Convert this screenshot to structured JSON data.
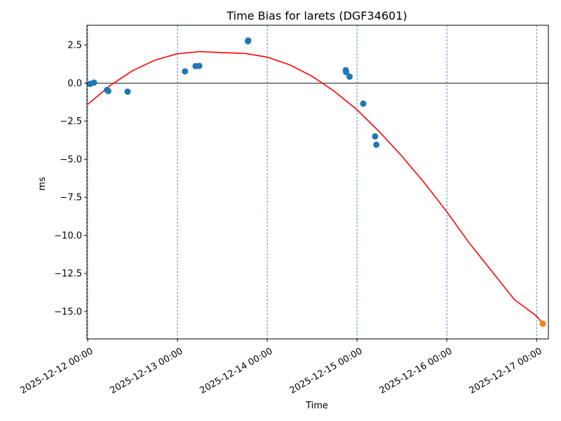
{
  "chart_data": {
    "type": "scatter",
    "title": "Time Bias for larets (DGF34601)",
    "xlabel": "Time",
    "ylabel": "ms",
    "x_type": "datetime",
    "xlim": [
      "2025-12-11T23:48",
      "2025-12-17T03:09"
    ],
    "ylim": [
      -16.8,
      3.8
    ],
    "x_ticks": [
      {
        "value": "2025-12-12T00:00",
        "label": "2025-12-12 00:00"
      },
      {
        "value": "2025-12-13T00:00",
        "label": "2025-12-13 00:00"
      },
      {
        "value": "2025-12-14T00:00",
        "label": "2025-12-14 00:00"
      },
      {
        "value": "2025-12-15T00:00",
        "label": "2025-12-15 00:00"
      },
      {
        "value": "2025-12-16T00:00",
        "label": "2025-12-16 00:00"
      },
      {
        "value": "2025-12-17T00:00",
        "label": "2025-12-17 00:00"
      }
    ],
    "y_ticks": [
      {
        "value": 2.5,
        "label": "2.5"
      },
      {
        "value": 0.0,
        "label": "0.0"
      },
      {
        "value": -2.5,
        "label": "−2.5"
      },
      {
        "value": -5.0,
        "label": "−5.0"
      },
      {
        "value": -7.5,
        "label": "−7.5"
      },
      {
        "value": -10.0,
        "label": "−10.0"
      },
      {
        "value": -12.5,
        "label": "−12.5"
      },
      {
        "value": -15.0,
        "label": "−15.0"
      }
    ],
    "vertical_gridlines": [
      "2025-12-12T00:00",
      "2025-12-13T00:00",
      "2025-12-14T00:00",
      "2025-12-15T00:00",
      "2025-12-16T00:00",
      "2025-12-17T00:00"
    ],
    "zero_line": 0,
    "series": [
      {
        "type": "scatter",
        "color": "#1f77b4",
        "points": [
          {
            "x": "2025-12-12T00:40",
            "y": -0.05
          },
          {
            "x": "2025-12-12T01:40",
            "y": 0.03
          },
          {
            "x": "2025-12-12T05:10",
            "y": -0.45
          },
          {
            "x": "2025-12-12T05:30",
            "y": -0.52
          },
          {
            "x": "2025-12-12T10:40",
            "y": -0.56
          },
          {
            "x": "2025-12-13T02:00",
            "y": 0.77
          },
          {
            "x": "2025-12-13T04:50",
            "y": 1.12
          },
          {
            "x": "2025-12-13T05:50",
            "y": 1.13
          },
          {
            "x": "2025-12-13T18:50",
            "y": 2.75
          },
          {
            "x": "2025-12-13T18:55",
            "y": 2.8
          },
          {
            "x": "2025-12-14T21:00",
            "y": 0.85
          },
          {
            "x": "2025-12-14T21:05",
            "y": 0.72
          },
          {
            "x": "2025-12-14T22:00",
            "y": 0.42
          },
          {
            "x": "2025-12-15T01:40",
            "y": -1.35
          },
          {
            "x": "2025-12-15T04:50",
            "y": -3.5
          },
          {
            "x": "2025-12-15T05:10",
            "y": -4.05
          }
        ]
      },
      {
        "type": "scatter",
        "color": "#ff7f0e",
        "points": [
          {
            "x": "2025-12-17T01:40",
            "y": -15.8
          }
        ]
      },
      {
        "type": "line",
        "color": "#ff0000",
        "points": [
          {
            "x": "2025-12-12T00:00",
            "y": -1.4
          },
          {
            "x": "2025-12-12T06:00",
            "y": -0.16
          },
          {
            "x": "2025-12-12T12:00",
            "y": 0.82
          },
          {
            "x": "2025-12-12T18:00",
            "y": 1.51
          },
          {
            "x": "2025-12-13T00:00",
            "y": 1.93
          },
          {
            "x": "2025-12-13T06:00",
            "y": 2.07
          },
          {
            "x": "2025-12-13T12:00",
            "y": 2.0
          },
          {
            "x": "2025-12-13T18:00",
            "y": 1.95
          },
          {
            "x": "2025-12-14T00:00",
            "y": 1.71
          },
          {
            "x": "2025-12-14T06:00",
            "y": 1.2
          },
          {
            "x": "2025-12-14T12:00",
            "y": 0.45
          },
          {
            "x": "2025-12-14T18:00",
            "y": -0.55
          },
          {
            "x": "2025-12-15T00:00",
            "y": -1.75
          },
          {
            "x": "2025-12-15T06:00",
            "y": -3.2
          },
          {
            "x": "2025-12-15T12:00",
            "y": -4.8
          },
          {
            "x": "2025-12-15T18:00",
            "y": -6.55
          },
          {
            "x": "2025-12-16T00:00",
            "y": -8.45
          },
          {
            "x": "2025-12-16T06:00",
            "y": -10.5
          },
          {
            "x": "2025-12-16T12:00",
            "y": -12.35
          },
          {
            "x": "2025-12-16T18:00",
            "y": -14.2
          },
          {
            "x": "2025-12-17T00:00",
            "y": -15.3
          },
          {
            "x": "2025-12-17T01:40",
            "y": -15.8
          }
        ]
      }
    ]
  }
}
